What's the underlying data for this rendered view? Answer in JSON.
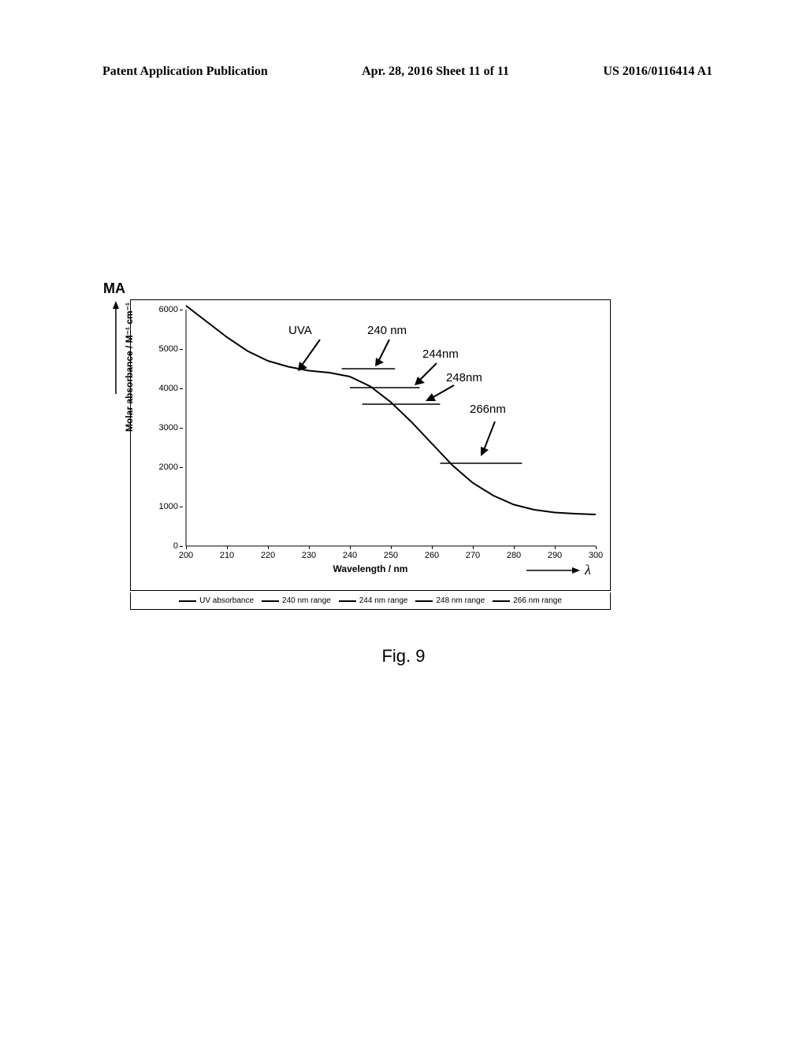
{
  "header": {
    "left": "Patent Application Publication",
    "center": "Apr. 28, 2016  Sheet 11 of 11",
    "right": "US 2016/0116414 A1"
  },
  "figure": {
    "ma_label": "MA",
    "caption": "Fig. 9",
    "lambda": "λ",
    "annot_uva": "UVA",
    "annot_240": "240 nm",
    "annot_244": "244nm",
    "annot_248": "248nm",
    "annot_266": "266nm"
  },
  "chart": {
    "type": "line",
    "x_title": "Wavelength / nm",
    "y_title_html": "Molar absorbance / M⁻¹ cm⁻¹",
    "xlim": [
      200,
      300
    ],
    "ylim": [
      0,
      6000
    ],
    "x_ticks": [
      200,
      210,
      220,
      230,
      240,
      250,
      260,
      270,
      280,
      290,
      300
    ],
    "y_ticks": [
      0,
      1000,
      2000,
      3000,
      4000,
      5000,
      6000
    ],
    "background_color": "#ffffff",
    "axis_color": "#000000",
    "curve_color": "#000000",
    "curve_width": 2,
    "range_line_width": 1.5,
    "curve_points": [
      {
        "x": 200,
        "y": 6100
      },
      {
        "x": 205,
        "y": 5700
      },
      {
        "x": 210,
        "y": 5300
      },
      {
        "x": 215,
        "y": 4950
      },
      {
        "x": 220,
        "y": 4700
      },
      {
        "x": 225,
        "y": 4550
      },
      {
        "x": 230,
        "y": 4450
      },
      {
        "x": 235,
        "y": 4400
      },
      {
        "x": 240,
        "y": 4300
      },
      {
        "x": 245,
        "y": 4050
      },
      {
        "x": 250,
        "y": 3650
      },
      {
        "x": 255,
        "y": 3150
      },
      {
        "x": 260,
        "y": 2600
      },
      {
        "x": 265,
        "y": 2050
      },
      {
        "x": 270,
        "y": 1600
      },
      {
        "x": 275,
        "y": 1280
      },
      {
        "x": 280,
        "y": 1050
      },
      {
        "x": 285,
        "y": 920
      },
      {
        "x": 290,
        "y": 850
      },
      {
        "x": 295,
        "y": 820
      },
      {
        "x": 300,
        "y": 800
      }
    ],
    "range_lines": [
      {
        "name": "240nm",
        "x1": 238,
        "x2": 251,
        "y": 4500
      },
      {
        "name": "244nm",
        "x1": 240,
        "x2": 257,
        "y": 4020
      },
      {
        "name": "248nm",
        "x1": 243,
        "x2": 262,
        "y": 3600
      },
      {
        "name": "266nm",
        "x1": 262,
        "x2": 282,
        "y": 2100
      }
    ],
    "legend_items": [
      "UV absorbance",
      "240 nm range",
      "244 nm range",
      "248 nm range",
      "266 nm range"
    ]
  }
}
